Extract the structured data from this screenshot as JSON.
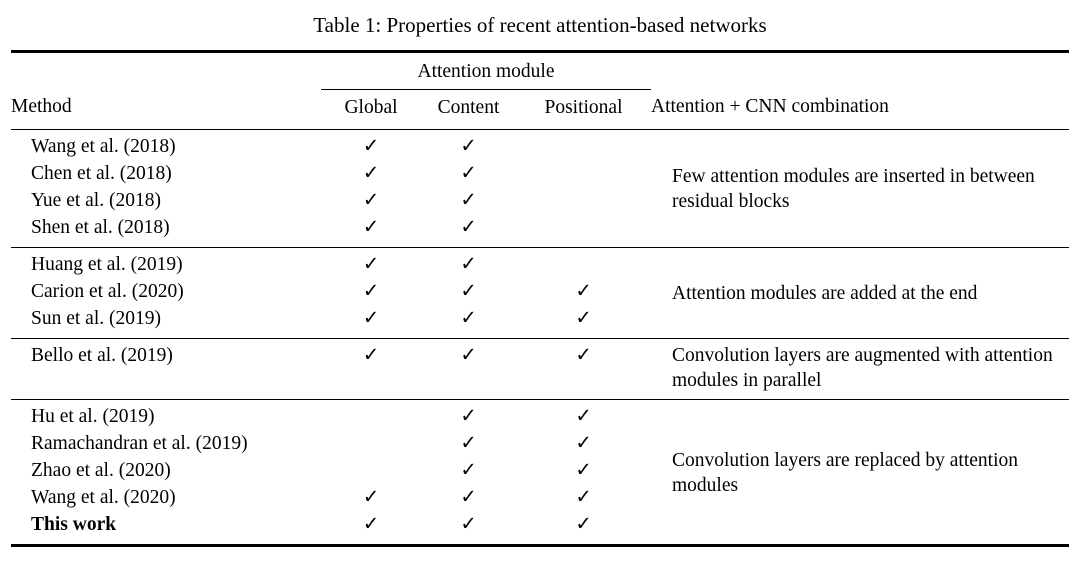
{
  "title": "Table 1: Properties of recent attention-based networks",
  "check_glyph": "✓",
  "header": {
    "method": "Method",
    "attention_module": "Attention module",
    "columns": [
      "Global",
      "Content",
      "Positional"
    ],
    "combination": "Attention + CNN combination"
  },
  "groups": [
    {
      "note": "Few attention modules are inserted in between residual blocks",
      "rows": [
        {
          "method": "Wang et al. (2018)",
          "global": true,
          "content": true,
          "positional": false,
          "bold": false
        },
        {
          "method": "Chen et al. (2018)",
          "global": true,
          "content": true,
          "positional": false,
          "bold": false
        },
        {
          "method": "Yue et al. (2018)",
          "global": true,
          "content": true,
          "positional": false,
          "bold": false
        },
        {
          "method": "Shen et al. (2018)",
          "global": true,
          "content": true,
          "positional": false,
          "bold": false
        }
      ]
    },
    {
      "note": "Attention modules are added at the end",
      "rows": [
        {
          "method": "Huang et al. (2019)",
          "global": true,
          "content": true,
          "positional": false,
          "bold": false
        },
        {
          "method": "Carion et al. (2020)",
          "global": true,
          "content": true,
          "positional": true,
          "bold": false
        },
        {
          "method": "Sun et al. (2019)",
          "global": true,
          "content": true,
          "positional": true,
          "bold": false
        }
      ]
    },
    {
      "note": "Convolution layers are augmented with attention modules in parallel",
      "rows": [
        {
          "method": "Bello et al. (2019)",
          "global": true,
          "content": true,
          "positional": true,
          "bold": false
        }
      ]
    },
    {
      "note": "Convolution layers are replaced by attention modules",
      "rows": [
        {
          "method": "Hu et al. (2019)",
          "global": false,
          "content": true,
          "positional": true,
          "bold": false
        },
        {
          "method": "Ramachandran et al. (2019)",
          "global": false,
          "content": true,
          "positional": true,
          "bold": false
        },
        {
          "method": "Zhao et al. (2020)",
          "global": false,
          "content": true,
          "positional": true,
          "bold": false
        },
        {
          "method": "Wang et al. (2020)",
          "global": true,
          "content": true,
          "positional": true,
          "bold": false
        },
        {
          "method": "This work",
          "global": true,
          "content": true,
          "positional": true,
          "bold": true
        }
      ]
    }
  ]
}
